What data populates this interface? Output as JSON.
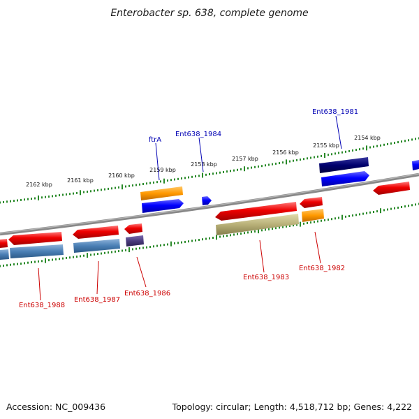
{
  "title": "Enterobacter sp. 638, complete genome",
  "footer": {
    "accession": "Accession: NC_009436",
    "summary": "Topology: circular; Length: 4,518,712 bp; Genes: 4,222"
  },
  "ruler_labels": [
    "2162 kbp",
    "2161 kbp",
    "2160 kbp",
    "2159 kbp",
    "2158 kbp",
    "2157 kbp",
    "2156 kbp",
    "2155 kbp",
    "2154 kbp"
  ],
  "gene_labels": [
    {
      "name": "ftrA",
      "color": "#0000b4"
    },
    {
      "name": "Ent638_1984",
      "color": "#0000b4"
    },
    {
      "name": "Ent638_1981",
      "color": "#0000b4"
    },
    {
      "name": "Ent638_1983",
      "color": "#cc0000"
    },
    {
      "name": "Ent638_1982",
      "color": "#cc0000"
    },
    {
      "name": "Ent638_1988",
      "color": "#cc0000"
    },
    {
      "name": "Ent638_1987",
      "color": "#cc0000"
    },
    {
      "name": "Ent638_1986",
      "color": "#cc0000"
    }
  ],
  "colors": {
    "forward_cds": "#0000ff",
    "reverse_cds": "#ee0000",
    "backbone": "#888888",
    "ticks": "#2a8a2a",
    "orange_feature": "#ff9900",
    "steelblue_feature": "#4a7fb5",
    "olive_feature": "#b8b078",
    "navy_feature": "#00006e",
    "purple_feature": "#4b3c7e"
  }
}
